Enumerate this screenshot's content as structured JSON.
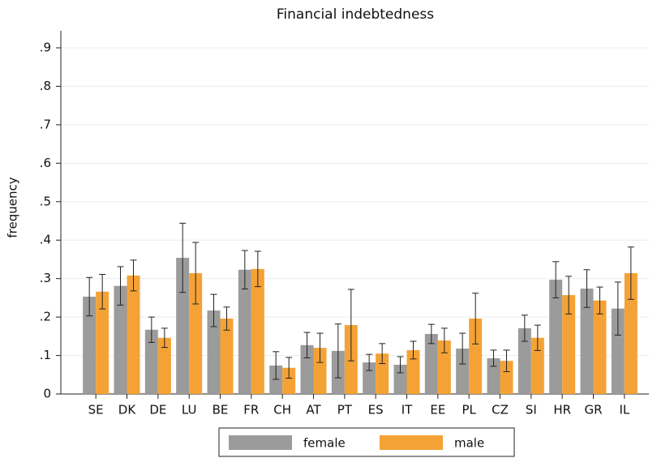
{
  "chart_data": {
    "type": "bar",
    "title": "Financial indebtedness",
    "y_label": "frequency",
    "categories": [
      "SE",
      "DK",
      "DE",
      "LU",
      "BE",
      "FR",
      "CH",
      "AT",
      "PT",
      "ES",
      "IT",
      "EE",
      "PL",
      "CZ",
      "SI",
      "HR",
      "GR",
      "IL"
    ],
    "series": [
      {
        "name": "female",
        "color": "#9b9b9b",
        "values": [
          0.253,
          0.281,
          0.167,
          0.354,
          0.217,
          0.323,
          0.074,
          0.127,
          0.112,
          0.082,
          0.076,
          0.156,
          0.118,
          0.093,
          0.171,
          0.297,
          0.274,
          0.222
        ],
        "errors": [
          0.05,
          0.05,
          0.033,
          0.09,
          0.042,
          0.05,
          0.036,
          0.033,
          0.07,
          0.021,
          0.021,
          0.025,
          0.04,
          0.021,
          0.034,
          0.047,
          0.049,
          0.069
        ]
      },
      {
        "name": "male",
        "color": "#f4a236",
        "values": [
          0.266,
          0.308,
          0.146,
          0.314,
          0.196,
          0.325,
          0.068,
          0.12,
          0.179,
          0.105,
          0.114,
          0.139,
          0.196,
          0.086,
          0.146,
          0.257,
          0.243,
          0.314
        ],
        "errors": [
          0.045,
          0.04,
          0.025,
          0.08,
          0.03,
          0.046,
          0.027,
          0.038,
          0.093,
          0.026,
          0.023,
          0.032,
          0.066,
          0.028,
          0.033,
          0.049,
          0.035,
          0.068
        ]
      }
    ],
    "ylim": [
      0,
      0.9
    ],
    "yticks": [
      0,
      {
        "value": 0.1,
        "label": ".1"
      },
      {
        "value": 0.2,
        "label": ".2"
      },
      {
        "value": 0.3,
        "label": ".3"
      },
      {
        "value": 0.4,
        "label": ".4"
      },
      {
        "value": 0.5,
        "label": ".5"
      },
      {
        "value": 0.6,
        "label": ".6"
      },
      {
        "value": 0.7,
        "label": ".7"
      },
      {
        "value": 0.8,
        "label": ".8"
      },
      {
        "value": 0.9,
        "label": ".9"
      }
    ],
    "grid": true,
    "legend": "bottom"
  }
}
